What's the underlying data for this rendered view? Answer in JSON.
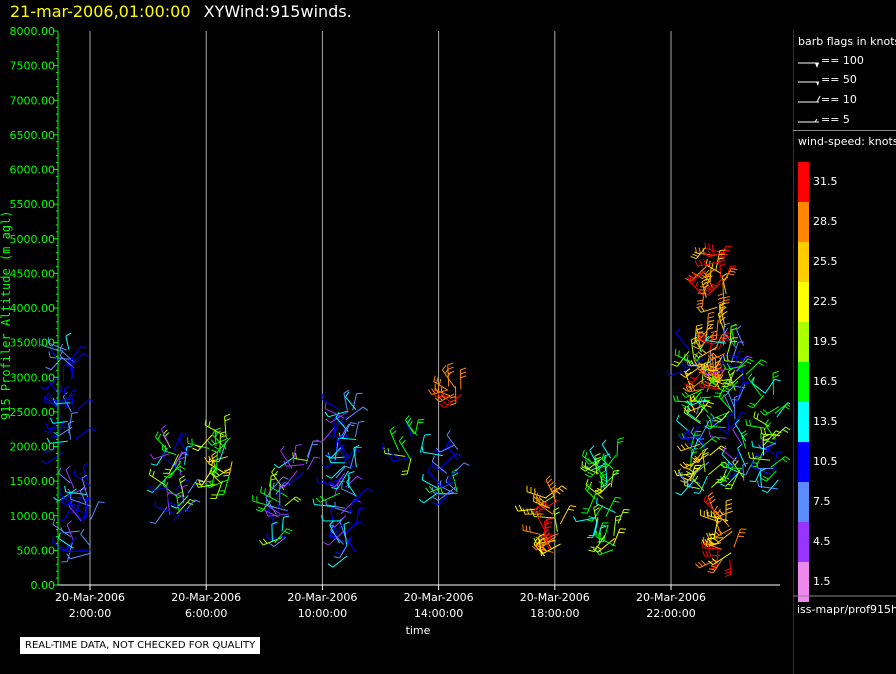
{
  "title": {
    "date": "21-mar-2006,01:00:00",
    "name": "XYWind:915winds."
  },
  "notice": "REAL-TIME DATA, NOT CHECKED FOR QUALITY",
  "source_path": "iss-mapr/prof915h",
  "legend": {
    "barb_header": "barb flags in knots",
    "barb_items": [
      "== 100",
      "== 50",
      "== 10",
      "== 5"
    ],
    "speed_header": "wind-speed: knots",
    "speed_labels": [
      "31.5",
      "28.5",
      "25.5",
      "22.5",
      "19.5",
      "16.5",
      "13.5",
      "10.5",
      "7.5",
      "4.5",
      "1.5"
    ],
    "speed_colors": [
      "#ff0000",
      "#ff8800",
      "#ffcc00",
      "#ffff00",
      "#aaff00",
      "#00ff00",
      "#00ffff",
      "#0000ff",
      "#5a8cff",
      "#9933ff",
      "#ee88ee"
    ]
  },
  "chart_data": {
    "type": "scatter",
    "title": "XYWind:915winds.",
    "xlabel": "time",
    "ylabel": "915 Profiler Altitude (m agl)",
    "ylim": [
      0,
      8000
    ],
    "yticks": [
      "0.00",
      "500.00",
      "1000.00",
      "1500.00",
      "2000.00",
      "2500.00",
      "3000.00",
      "3500.00",
      "4000.00",
      "4500.00",
      "5000.00",
      "5500.00",
      "6000.00",
      "6500.00",
      "7000.00",
      "7500.00",
      "8000.00"
    ],
    "x_date_labels": [
      "20-Mar-2006",
      "20-Mar-2006",
      "20-Mar-2006",
      "20-Mar-2006",
      "20-Mar-2006",
      "20-Mar-2006"
    ],
    "x_time_labels": [
      "2:00:00",
      "6:00:00",
      "10:00:00",
      "14:00:00",
      "18:00:00",
      "22:00:00"
    ],
    "x_hours": [
      2,
      6,
      10,
      14,
      18,
      22
    ],
    "xlim_hours": [
      1,
      26.6
    ],
    "grid": "vertical",
    "clusters": [
      {
        "hour": 1.2,
        "alt_min": 1900,
        "alt_max": 3400,
        "speed": [
          7,
          13
        ]
      },
      {
        "hour": 1.7,
        "alt_min": 400,
        "alt_max": 1500,
        "speed": [
          4,
          13
        ]
      },
      {
        "hour": 5.0,
        "alt_min": 900,
        "alt_max": 2100,
        "speed": [
          4,
          20
        ]
      },
      {
        "hour": 6.5,
        "alt_min": 1400,
        "alt_max": 2200,
        "speed": [
          14,
          26
        ]
      },
      {
        "hour": 8.5,
        "alt_min": 600,
        "alt_max": 1400,
        "speed": [
          4,
          22
        ]
      },
      {
        "hour": 9.3,
        "alt_min": 1600,
        "alt_max": 1900,
        "speed": [
          4,
          20
        ]
      },
      {
        "hour": 10.8,
        "alt_min": 400,
        "alt_max": 2600,
        "speed": [
          4,
          16
        ]
      },
      {
        "hour": 13.0,
        "alt_min": 1800,
        "alt_max": 2200,
        "speed": [
          10,
          20
        ]
      },
      {
        "hour": 14.3,
        "alt_min": 1300,
        "alt_max": 2100,
        "speed": [
          7,
          17
        ]
      },
      {
        "hour": 14.4,
        "alt_min": 2700,
        "alt_max": 2900,
        "speed": [
          29,
          32
        ]
      },
      {
        "hour": 17.8,
        "alt_min": 400,
        "alt_max": 1400,
        "speed": [
          20,
          32
        ]
      },
      {
        "hour": 19.8,
        "alt_min": 500,
        "alt_max": 1900,
        "speed": [
          13,
          22
        ]
      },
      {
        "hour": 23.0,
        "alt_min": 1300,
        "alt_max": 3500,
        "speed": [
          7,
          26
        ]
      },
      {
        "hour": 23.5,
        "alt_min": 2800,
        "alt_max": 4900,
        "speed": [
          24,
          33
        ]
      },
      {
        "hour": 24.2,
        "alt_min": 1500,
        "alt_max": 3500,
        "speed": [
          4,
          20
        ]
      },
      {
        "hour": 23.8,
        "alt_min": 300,
        "alt_max": 1100,
        "speed": [
          22,
          33
        ]
      },
      {
        "hour": 25.5,
        "alt_min": 1300,
        "alt_max": 2800,
        "speed": [
          7,
          22
        ]
      }
    ]
  }
}
